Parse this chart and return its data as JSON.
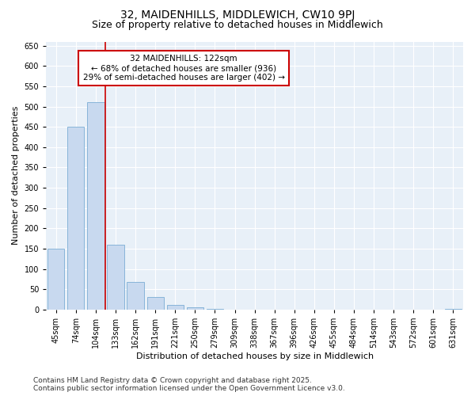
{
  "title1": "32, MAIDENHILLS, MIDDLEWICH, CW10 9PJ",
  "title2": "Size of property relative to detached houses in Middlewich",
  "xlabel": "Distribution of detached houses by size in Middlewich",
  "ylabel": "Number of detached properties",
  "categories": [
    "45sqm",
    "74sqm",
    "104sqm",
    "133sqm",
    "162sqm",
    "191sqm",
    "221sqm",
    "250sqm",
    "279sqm",
    "309sqm",
    "338sqm",
    "367sqm",
    "396sqm",
    "426sqm",
    "455sqm",
    "484sqm",
    "514sqm",
    "543sqm",
    "572sqm",
    "601sqm",
    "631sqm"
  ],
  "values": [
    150,
    450,
    510,
    160,
    68,
    32,
    12,
    5,
    2,
    0,
    0,
    0,
    0,
    0,
    0,
    0,
    0,
    0,
    0,
    0,
    2
  ],
  "bar_color": "#c8d9ef",
  "bar_edge_color": "#7aadd4",
  "vline_x": 2.5,
  "vline_color": "#cc0000",
  "annotation_text": "32 MAIDENHILLS: 122sqm\n← 68% of detached houses are smaller (936)\n29% of semi-detached houses are larger (402) →",
  "annotation_box_color": "#ffffff",
  "annotation_box_edge_color": "#cc0000",
  "ylim": [
    0,
    660
  ],
  "yticks": [
    0,
    50,
    100,
    150,
    200,
    250,
    300,
    350,
    400,
    450,
    500,
    550,
    600,
    650
  ],
  "fig_bg_color": "#ffffff",
  "plot_bg_color": "#e8f0f8",
  "grid_color": "#ffffff",
  "footnote": "Contains HM Land Registry data © Crown copyright and database right 2025.\nContains public sector information licensed under the Open Government Licence v3.0.",
  "title_fontsize": 10,
  "subtitle_fontsize": 9,
  "axis_label_fontsize": 8,
  "tick_fontsize": 7,
  "annotation_fontsize": 7.5,
  "footnote_fontsize": 6.5
}
